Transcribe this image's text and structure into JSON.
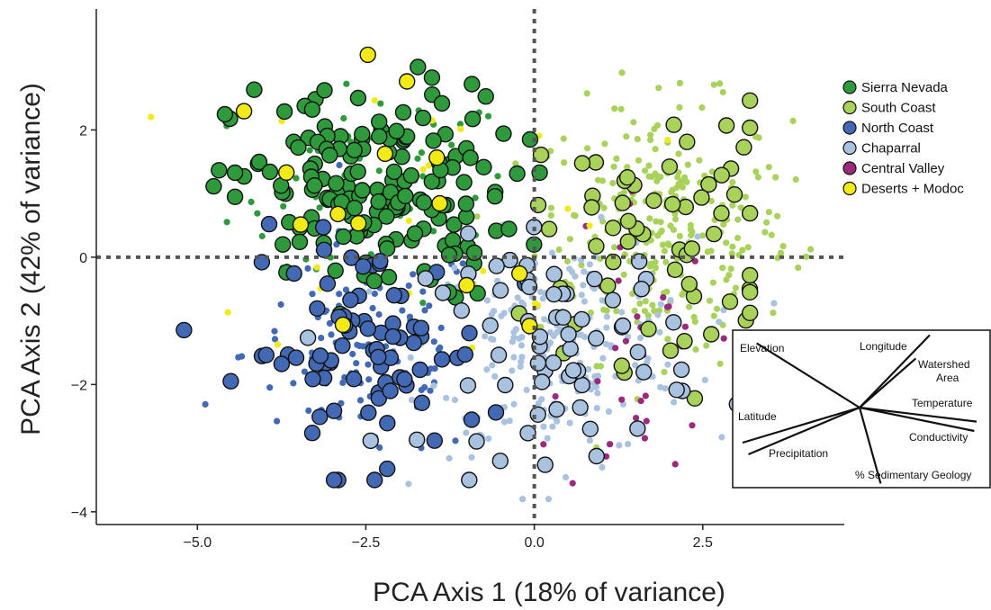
{
  "chart_data": {
    "type": "scatter",
    "title": "",
    "xlabel": "PCA Axis 1 (18% of variance)",
    "ylabel": "PCA Axis 2 (42% of variance)",
    "xlim": [
      -6.5,
      4.6
    ],
    "ylim": [
      -4.2,
      3.9
    ],
    "x_ticks": [
      -5.0,
      -2.5,
      0.0,
      2.5
    ],
    "x_tick_labels": [
      "−5.0",
      "−2.5",
      "0.0",
      "2.5"
    ],
    "y_ticks": [
      -4,
      -2,
      0,
      2
    ],
    "y_tick_labels": [
      "−4",
      "−2",
      "0",
      "2"
    ],
    "grid": false,
    "reference_lines": [
      {
        "axis": "x",
        "value": 0
      },
      {
        "axis": "y",
        "value": 0
      }
    ],
    "legend_position": "right",
    "series": [
      {
        "name": "Sierra Nevada",
        "color": "#2e9a3c",
        "centroid": [
          -2.4,
          1.0
        ],
        "spread": [
          1.05,
          0.85
        ],
        "n_large": 170,
        "n_small": 70
      },
      {
        "name": "South Coast",
        "color": "#a9d25a",
        "centroid": [
          1.9,
          0.4
        ],
        "spread": [
          0.95,
          1.0
        ],
        "n_large": 60,
        "n_small": 260
      },
      {
        "name": "North Coast",
        "color": "#4469b4",
        "centroid": [
          -2.5,
          -1.5
        ],
        "spread": [
          0.9,
          0.9
        ],
        "n_large": 80,
        "n_small": 110
      },
      {
        "name": "Chaparral",
        "color": "#a8c2df",
        "centroid": [
          0.4,
          -1.4
        ],
        "spread": [
          1.0,
          0.85
        ],
        "n_large": 65,
        "n_small": 230
      },
      {
        "name": "Central Valley",
        "color": "#9b2a7d",
        "centroid": [
          1.5,
          -1.4
        ],
        "spread": [
          0.55,
          1.3
        ],
        "n_large": 0,
        "n_small": 40
      },
      {
        "name": "Deserts + Modoc",
        "color": "#f2ea17",
        "centroid": [
          -1.5,
          0.9
        ],
        "spread": [
          1.6,
          1.2
        ],
        "n_large": 14,
        "n_small": 30
      }
    ],
    "loadings_inset": {
      "labels": [
        "Elevation",
        "Longitude",
        "Watershed Area",
        "Temperature",
        "Latitude",
        "Precipitation",
        "Conductivity",
        "% Sedimentary Geology"
      ],
      "vectors": [
        {
          "name": "Elevation",
          "dx": -0.88,
          "dy": 0.55
        },
        {
          "name": "Longitude",
          "dx": 0.6,
          "dy": 0.62
        },
        {
          "name": "Watershed Area",
          "dx": 0.48,
          "dy": 0.42
        },
        {
          "name": "Temperature",
          "dx": 1.0,
          "dy": -0.12
        },
        {
          "name": "Conductivity",
          "dx": 0.98,
          "dy": -0.2
        },
        {
          "name": "Latitude",
          "dx": -1.0,
          "dy": -0.3
        },
        {
          "name": "Precipitation",
          "dx": -0.95,
          "dy": -0.4
        },
        {
          "name": "% Sedimentary Geology",
          "dx": 0.18,
          "dy": -0.65
        }
      ]
    }
  }
}
